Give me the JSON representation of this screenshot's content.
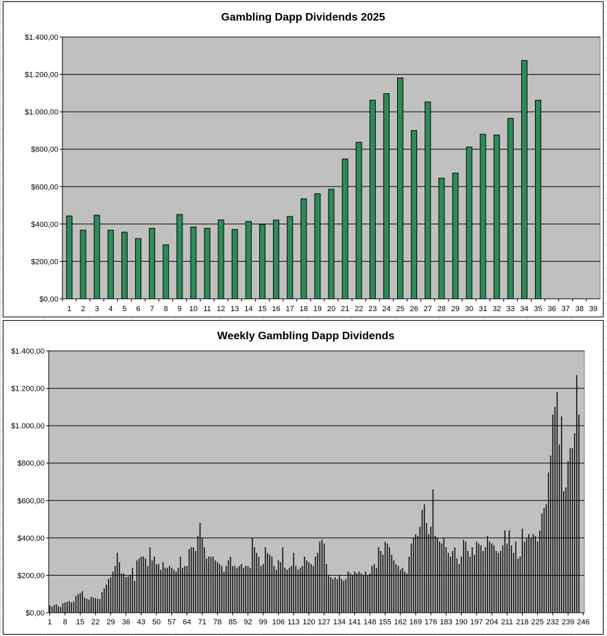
{
  "chart_data": [
    {
      "type": "bar",
      "title": "Gambling Dapp Dividends 2025",
      "xlabel": "",
      "ylabel": "",
      "ylim": [
        0,
        1400
      ],
      "ytick_labels": [
        "$0,00",
        "$200,00",
        "$400,00",
        "$600,00",
        "$800,00",
        "$1.000,00",
        "$1.200,00",
        "$1.400,00"
      ],
      "categories": [
        "1",
        "2",
        "3",
        "4",
        "5",
        "6",
        "7",
        "8",
        "9",
        "10",
        "11",
        "12",
        "13",
        "14",
        "15",
        "16",
        "17",
        "18",
        "19",
        "20",
        "21",
        "22",
        "23",
        "24",
        "25",
        "26",
        "27",
        "28",
        "29",
        "30",
        "31",
        "32",
        "33",
        "34",
        "35",
        "36",
        "37",
        "38",
        "39"
      ],
      "values": [
        443,
        367,
        447,
        367,
        356,
        322,
        377,
        289,
        451,
        384,
        377,
        422,
        371,
        414,
        397,
        421,
        440,
        535,
        562,
        586,
        748,
        837,
        1062,
        1097,
        1181,
        900,
        1053,
        645,
        672,
        812,
        880,
        876,
        965,
        1274,
        1062,
        null,
        null,
        null,
        null
      ],
      "bar_color": "#2e8b57",
      "plot_background": "#c0c0c0",
      "grid": true
    },
    {
      "type": "bar",
      "title": "Weekly Gambling Dapp Dividends",
      "xlabel": "",
      "ylabel": "",
      "ylim": [
        0,
        1400
      ],
      "ytick_labels": [
        "$0,00",
        "$200,00",
        "$400,00",
        "$600,00",
        "$800,00",
        "$1.000,00",
        "$1.200,00",
        "$1.400,00"
      ],
      "x_range": [
        1,
        246
      ],
      "xtick_labels": [
        "1",
        "8",
        "15",
        "22",
        "29",
        "36",
        "43",
        "50",
        "57",
        "64",
        "71",
        "78",
        "85",
        "92",
        "99",
        "106",
        "113",
        "120",
        "127",
        "134",
        "141",
        "148",
        "155",
        "162",
        "169",
        "176",
        "183",
        "190",
        "197",
        "204",
        "211",
        "218",
        "225",
        "232",
        "239",
        "246"
      ],
      "values": [
        38,
        32,
        40,
        45,
        35,
        30,
        50,
        55,
        58,
        62,
        55,
        60,
        90,
        100,
        105,
        115,
        80,
        75,
        70,
        85,
        80,
        78,
        75,
        72,
        110,
        130,
        150,
        180,
        190,
        220,
        250,
        320,
        270,
        210,
        210,
        190,
        195,
        200,
        240,
        170,
        280,
        290,
        300,
        300,
        290,
        250,
        350,
        280,
        300,
        260,
        260,
        230,
        270,
        240,
        240,
        250,
        240,
        230,
        220,
        240,
        300,
        240,
        250,
        250,
        340,
        350,
        350,
        330,
        410,
        480,
        400,
        350,
        290,
        300,
        300,
        300,
        280,
        270,
        260,
        250,
        220,
        250,
        280,
        300,
        250,
        250,
        240,
        250,
        260,
        240,
        250,
        250,
        240,
        400,
        350,
        320,
        300,
        250,
        260,
        350,
        320,
        310,
        300,
        250,
        230,
        280,
        270,
        350,
        240,
        230,
        240,
        250,
        320,
        250,
        230,
        240,
        250,
        300,
        280,
        270,
        260,
        250,
        300,
        320,
        380,
        390,
        370,
        260,
        200,
        190,
        180,
        190,
        180,
        200,
        180,
        170,
        180,
        220,
        210,
        200,
        220,
        210,
        220,
        210,
        200,
        220,
        200,
        210,
        250,
        260,
        240,
        350,
        330,
        310,
        380,
        370,
        350,
        310,
        280,
        260,
        250,
        230,
        240,
        220,
        210,
        300,
        370,
        400,
        420,
        410,
        460,
        550,
        580,
        480,
        420,
        460,
        660,
        410,
        400,
        380,
        370,
        400,
        350,
        320,
        300,
        330,
        350,
        290,
        260,
        300,
        390,
        380,
        330,
        300,
        350,
        310,
        380,
        370,
        360,
        330,
        350,
        410,
        380,
        370,
        360,
        330,
        320,
        330,
        360,
        440,
        370,
        440,
        360,
        320,
        380,
        290,
        300,
        450,
        380,
        400,
        420,
        400,
        420,
        410,
        380,
        440,
        530,
        560,
        580,
        750,
        840,
        1060,
        1100,
        1180,
        900,
        1050,
        650,
        670,
        810,
        880,
        880,
        960,
        1270,
        1060
      ]
    }
  ]
}
